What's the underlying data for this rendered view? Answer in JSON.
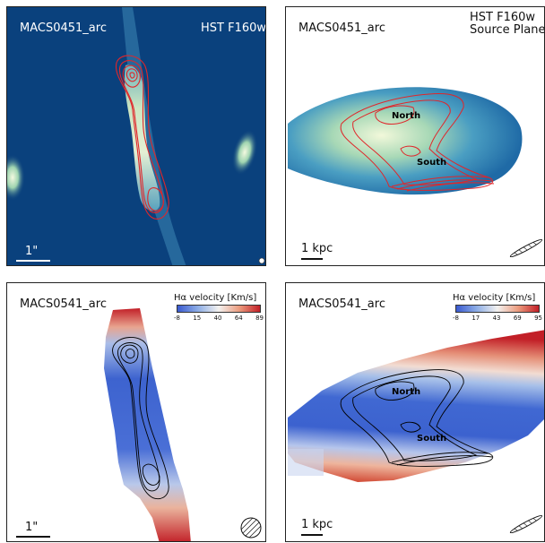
{
  "panels": {
    "top_left": {
      "object_name": "MACS0451_arc",
      "band_label": "HST F160w",
      "scale_label": "1\""
    },
    "top_right": {
      "object_name": "MACS0451_arc",
      "band_label_line1": "HST F160w",
      "band_label_line2": "Source Plane",
      "scale_label": "1 kpc",
      "region_north": "North",
      "region_south": "South"
    },
    "bottom_left": {
      "object_name": "MACS0541_arc",
      "colorbar_title": "Hα velocity [Km/s]",
      "colorbar_ticks": [
        "-8",
        "15",
        "40",
        "64",
        "89"
      ],
      "scale_label": "1\""
    },
    "bottom_right": {
      "object_name": "MACS0541_arc",
      "colorbar_title": "Hα velocity [Km/s]",
      "colorbar_ticks": [
        "-8",
        "17",
        "43",
        "69",
        "95"
      ],
      "scale_label": "1 kpc",
      "region_north": "North",
      "region_south": "South"
    }
  },
  "colors": {
    "image_background": "#0a3f7a",
    "contour_red": "#e0262a",
    "contour_black": "#000000",
    "velocity_blue": "#3355cc",
    "velocity_red": "#c21f27"
  }
}
